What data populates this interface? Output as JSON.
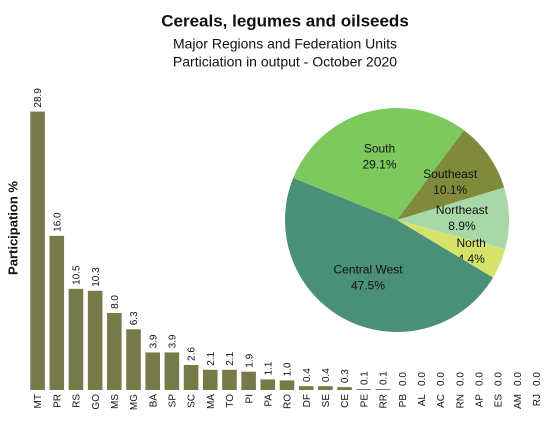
{
  "chart_data": [
    {
      "type": "bar",
      "title": "Cereals, legumes and oilseeds",
      "subtitle": [
        "Major Regions and Federation Units",
        "Particiation in output - October 2020"
      ],
      "y_label": "Participation %",
      "categories": [
        "MT",
        "PR",
        "RS",
        "GO",
        "MS",
        "MG",
        "BA",
        "SP",
        "SC",
        "MA",
        "TO",
        "PI",
        "PA",
        "RO",
        "DF",
        "SE",
        "CE",
        "PE",
        "RR",
        "PB",
        "AL",
        "AC",
        "RN",
        "AP",
        "ES",
        "AM",
        "RJ"
      ],
      "values": [
        28.9,
        16.0,
        10.5,
        10.3,
        8.0,
        6.3,
        3.9,
        3.9,
        2.6,
        2.1,
        2.1,
        1.9,
        1.1,
        1.0,
        0.4,
        0.4,
        0.3,
        0.1,
        0.1,
        0.0,
        0.0,
        0.0,
        0.0,
        0.0,
        0.0,
        0.0,
        0.0
      ],
      "value_labels": [
        "28.9",
        "16.0",
        "10.5",
        "10.3",
        "8.0",
        "6.3",
        "3.9",
        "3.9",
        "2.6",
        "2.1",
        "2.1",
        "1.9",
        "1.1",
        "1.0",
        "0.4",
        "0.4",
        "0.3",
        "0.1",
        "0.1",
        "0.0",
        "0.0",
        "0.0",
        "0.0",
        "0.0",
        "0.0",
        "0.0",
        "0.0"
      ],
      "color": "#767a48",
      "ylim": [
        0,
        30
      ]
    },
    {
      "type": "pie",
      "categories": [
        "South",
        "Southeast",
        "Northeast",
        "North",
        "Central West"
      ],
      "values": [
        29.1,
        10.1,
        8.9,
        4.4,
        47.5
      ],
      "value_labels": [
        "29.1%",
        "10.1%",
        "8.9%",
        "4.4%",
        "47.5%"
      ],
      "colors": [
        "#7dc95e",
        "#7f8a3a",
        "#a8d8a8",
        "#d6e36a",
        "#4a8f78"
      ]
    }
  ]
}
